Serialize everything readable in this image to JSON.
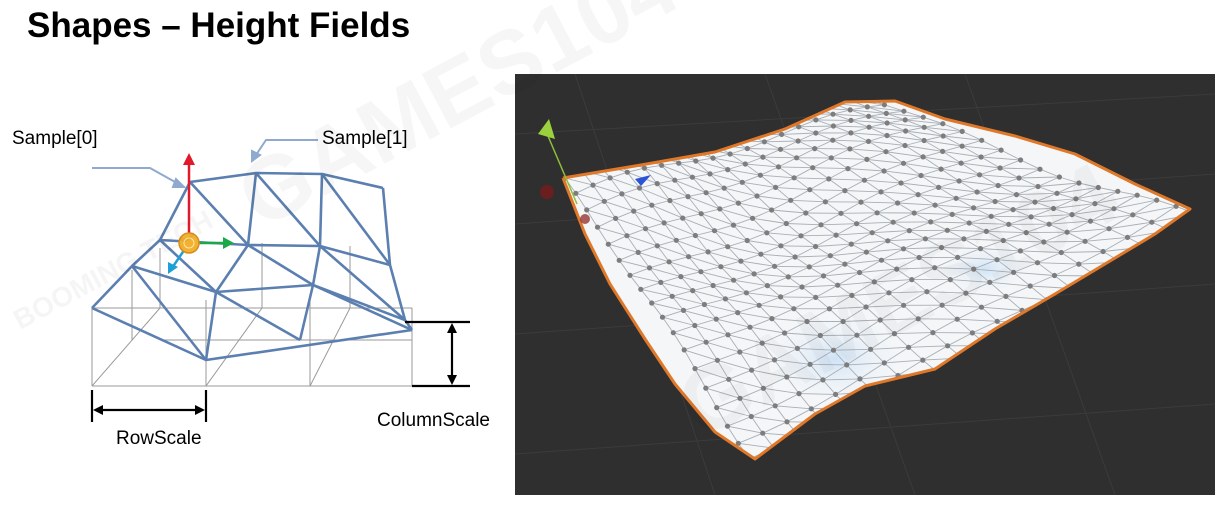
{
  "slide": {
    "title": "Shapes – Height Fields"
  },
  "watermark": {
    "text": "GAMES104",
    "brand": "BOOMING TECH"
  },
  "diagram": {
    "labels": {
      "sample0": "Sample[0]",
      "sample1": "Sample[1]",
      "row_scale": "RowScale",
      "column_scale": "ColumnScale"
    },
    "colors": {
      "mesh": "#5b7fb0",
      "grid": "#9a9a9a",
      "callout": "#8fa9cf",
      "axis_up": "#e0192b",
      "axis_right": "#1aa84a",
      "axis_forward": "#1e9fd8",
      "gizmo": "#f2b133"
    }
  },
  "viewport": {
    "background": "#2f2f2f",
    "terrain_fill": "#f4f6f8",
    "terrain_edge": "#e0782a",
    "vertex_color": "#7d7d7d",
    "highlight": "#cfe3f6"
  }
}
